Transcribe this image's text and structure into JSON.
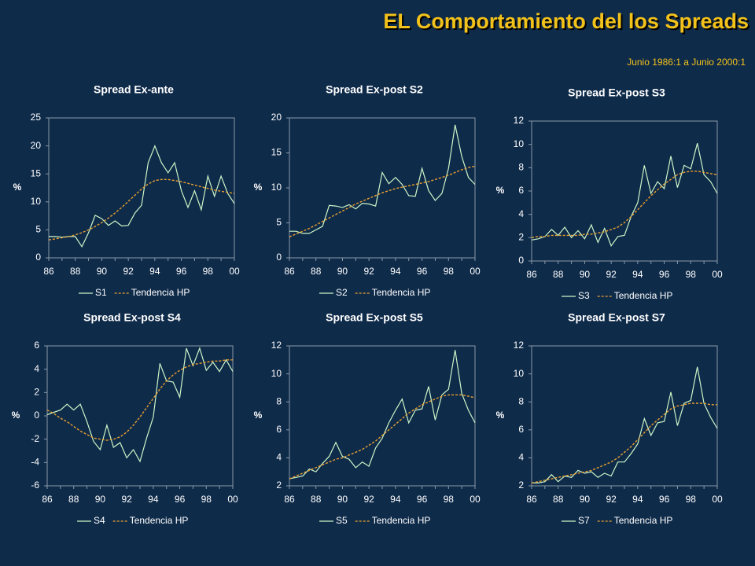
{
  "title": "EL Comportamiento del los Spreads",
  "subtitle": "Junio 1986:1 a Junio 2000:1",
  "chart_data": [
    {
      "type": "line",
      "title": "Spread Ex-ante",
      "ylabel": "%",
      "grid": false,
      "legend": "bottom",
      "categories": [
        "86",
        null,
        null,
        null,
        "88",
        null,
        null,
        null,
        "90",
        null,
        null,
        null,
        "92",
        null,
        null,
        null,
        "94",
        null,
        null,
        null,
        "96",
        null,
        null,
        null,
        "98",
        null,
        null,
        null,
        "00"
      ],
      "ylim": [
        0,
        25
      ],
      "yticks": [
        0,
        5,
        10,
        15,
        20,
        25
      ],
      "series": [
        {
          "name": "S1",
          "color": "#ccf5c8",
          "line_style": "solid",
          "values": [
            3.8,
            3.8,
            3.7,
            3.8,
            3.8,
            2.0,
            4.5,
            7.6,
            7.0,
            5.8,
            6.6,
            5.7,
            5.8,
            8.0,
            9.4,
            17.0,
            20.0,
            17.0,
            15.2,
            17.0,
            12.0,
            9.0,
            12.0,
            8.6,
            14.6,
            11.0,
            14.6,
            11.5,
            9.7
          ]
        },
        {
          "name": "Tendencia HP",
          "color": "#e8a030",
          "line_style": "dashed",
          "values": [
            3.2,
            3.4,
            3.6,
            3.8,
            4.1,
            4.5,
            5.0,
            5.6,
            6.3,
            7.1,
            8.0,
            9.0,
            10.1,
            11.2,
            12.3,
            13.2,
            13.8,
            14.0,
            14.0,
            13.8,
            13.6,
            13.3,
            13.0,
            12.7,
            12.4,
            12.1,
            11.9,
            11.7,
            11.5
          ]
        }
      ]
    },
    {
      "type": "line",
      "title": "Spread Ex-post S2",
      "ylabel": "%",
      "grid": false,
      "legend": "bottom",
      "categories": [
        "86",
        null,
        null,
        null,
        "88",
        null,
        null,
        null,
        "90",
        null,
        null,
        null,
        "92",
        null,
        null,
        null,
        "94",
        null,
        null,
        null,
        "96",
        null,
        null,
        null,
        "98",
        null,
        null,
        null,
        "00"
      ],
      "ylim": [
        0,
        20
      ],
      "yticks": [
        0,
        5,
        10,
        15,
        20
      ],
      "series": [
        {
          "name": "S2",
          "color": "#ccf5c8",
          "line_style": "solid",
          "values": [
            3.8,
            3.8,
            3.5,
            3.5,
            4.0,
            4.5,
            7.5,
            7.4,
            7.2,
            7.6,
            7.0,
            7.8,
            7.7,
            7.4,
            12.2,
            10.6,
            11.5,
            10.5,
            8.9,
            8.8,
            12.8,
            9.6,
            8.2,
            9.2,
            12.8,
            19.0,
            14.5,
            11.5,
            10.5
          ]
        },
        {
          "name": "Tendencia HP",
          "color": "#e8a030",
          "line_style": "dashed",
          "values": [
            3.0,
            3.4,
            3.8,
            4.2,
            4.7,
            5.2,
            5.7,
            6.2,
            6.7,
            7.2,
            7.7,
            8.1,
            8.5,
            8.9,
            9.3,
            9.6,
            9.9,
            10.1,
            10.3,
            10.5,
            10.7,
            10.9,
            11.2,
            11.5,
            11.8,
            12.2,
            12.6,
            12.9,
            13.1
          ]
        }
      ]
    },
    {
      "type": "line",
      "title": "Spread Ex-post S3",
      "ylabel": "%",
      "grid": false,
      "legend": "bottom",
      "categories": [
        "86",
        null,
        null,
        null,
        "88",
        null,
        null,
        null,
        "90",
        null,
        null,
        null,
        "92",
        null,
        null,
        null,
        "94",
        null,
        null,
        null,
        "96",
        null,
        null,
        null,
        "98",
        null,
        null,
        null,
        "00"
      ],
      "ylim": [
        0,
        12
      ],
      "yticks": [
        0,
        2,
        4,
        6,
        8,
        10,
        12
      ],
      "series": [
        {
          "name": "S3",
          "color": "#ccf5c8",
          "line_style": "solid",
          "values": [
            1.8,
            1.9,
            2.1,
            2.7,
            2.2,
            2.9,
            2.0,
            2.6,
            1.9,
            3.1,
            1.6,
            2.8,
            1.3,
            2.1,
            2.2,
            3.8,
            5.0,
            8.2,
            5.8,
            6.8,
            6.2,
            9.0,
            6.3,
            8.2,
            7.9,
            10.1,
            7.4,
            6.8,
            5.8
          ]
        },
        {
          "name": "Tendencia HP",
          "color": "#e8a030",
          "line_style": "dashed",
          "values": [
            2.0,
            2.1,
            2.1,
            2.2,
            2.2,
            2.2,
            2.2,
            2.2,
            2.3,
            2.3,
            2.4,
            2.5,
            2.7,
            2.9,
            3.3,
            3.8,
            4.4,
            5.0,
            5.6,
            6.1,
            6.6,
            7.0,
            7.4,
            7.6,
            7.7,
            7.7,
            7.6,
            7.5,
            7.4
          ]
        }
      ]
    },
    {
      "type": "line",
      "title": "Spread Ex-post S4",
      "ylabel": "%",
      "grid": false,
      "legend": "bottom",
      "categories": [
        "86",
        null,
        null,
        null,
        "88",
        null,
        null,
        null,
        "90",
        null,
        null,
        null,
        "92",
        null,
        null,
        null,
        "94",
        null,
        null,
        null,
        "96",
        null,
        null,
        null,
        "98",
        null,
        null,
        null,
        "00"
      ],
      "ylim": [
        -6,
        6
      ],
      "yticks": [
        -6,
        -4,
        -2,
        0,
        2,
        4,
        6
      ],
      "series": [
        {
          "name": "S4",
          "color": "#ccf5c8",
          "line_style": "solid",
          "values": [
            0.1,
            0.3,
            0.5,
            1.0,
            0.5,
            1.0,
            -0.5,
            -2.2,
            -2.9,
            -0.8,
            -2.7,
            -2.3,
            -3.6,
            -2.9,
            -3.9,
            -1.9,
            -0.1,
            4.5,
            3.0,
            2.9,
            1.6,
            5.8,
            4.3,
            5.8,
            3.9,
            4.6,
            3.8,
            4.8,
            3.8
          ]
        },
        {
          "name": "Tendencia HP",
          "color": "#e8a030",
          "line_style": "dashed",
          "values": [
            0.5,
            0.2,
            -0.2,
            -0.5,
            -0.9,
            -1.3,
            -1.6,
            -1.9,
            -2.0,
            -2.1,
            -2.0,
            -1.8,
            -1.4,
            -0.8,
            -0.1,
            0.7,
            1.5,
            2.3,
            3.0,
            3.5,
            3.9,
            4.2,
            4.4,
            4.5,
            4.6,
            4.7,
            4.7,
            4.8,
            4.8
          ]
        }
      ]
    },
    {
      "type": "line",
      "title": "Spread Ex-post S5",
      "ylabel": "%",
      "grid": false,
      "legend": "bottom",
      "categories": [
        "86",
        null,
        null,
        null,
        "88",
        null,
        null,
        null,
        "90",
        null,
        null,
        null,
        "92",
        null,
        null,
        null,
        "94",
        null,
        null,
        null,
        "96",
        null,
        null,
        null,
        "98",
        null,
        null,
        null,
        "00"
      ],
      "ylim": [
        2,
        12
      ],
      "yticks": [
        2,
        4,
        6,
        8,
        10,
        12
      ],
      "series": [
        {
          "name": "S5",
          "color": "#ccf5c8",
          "line_style": "solid",
          "values": [
            2.5,
            2.6,
            2.7,
            3.2,
            3.0,
            3.6,
            4.1,
            5.1,
            4.1,
            3.9,
            3.3,
            3.7,
            3.4,
            4.7,
            5.4,
            6.5,
            7.4,
            8.2,
            6.5,
            7.4,
            7.5,
            9.1,
            6.7,
            8.5,
            8.9,
            11.7,
            8.6,
            7.4,
            6.5
          ]
        },
        {
          "name": "Tendencia HP",
          "color": "#e8a030",
          "line_style": "dashed",
          "values": [
            2.5,
            2.7,
            2.9,
            3.1,
            3.3,
            3.5,
            3.7,
            3.9,
            4.0,
            4.2,
            4.4,
            4.6,
            4.9,
            5.2,
            5.6,
            6.0,
            6.4,
            6.8,
            7.2,
            7.5,
            7.8,
            8.0,
            8.2,
            8.4,
            8.5,
            8.5,
            8.5,
            8.4,
            8.3
          ]
        }
      ]
    },
    {
      "type": "line",
      "title": "Spread Ex-post S7",
      "ylabel": "%",
      "grid": false,
      "legend": "bottom",
      "categories": [
        "86",
        null,
        null,
        null,
        "88",
        null,
        null,
        null,
        "90",
        null,
        null,
        null,
        "92",
        null,
        null,
        null,
        "94",
        null,
        null,
        null,
        "96",
        null,
        null,
        null,
        "98",
        null,
        null,
        null,
        "00"
      ],
      "ylim": [
        2,
        12
      ],
      "yticks": [
        2,
        4,
        6,
        8,
        10,
        12
      ],
      "series": [
        {
          "name": "S7",
          "color": "#ccf5c8",
          "line_style": "solid",
          "values": [
            2.2,
            2.2,
            2.3,
            2.8,
            2.3,
            2.7,
            2.6,
            3.1,
            2.9,
            3.0,
            2.6,
            2.9,
            2.7,
            3.7,
            3.7,
            4.3,
            5.0,
            6.8,
            5.6,
            6.5,
            6.6,
            8.7,
            6.3,
            7.9,
            8.1,
            10.5,
            7.9,
            6.9,
            6.1
          ]
        },
        {
          "name": "Tendencia HP",
          "color": "#e8a030",
          "line_style": "dashed",
          "values": [
            2.2,
            2.3,
            2.4,
            2.5,
            2.6,
            2.7,
            2.8,
            2.9,
            3.0,
            3.1,
            3.3,
            3.5,
            3.7,
            4.0,
            4.4,
            4.8,
            5.3,
            5.8,
            6.3,
            6.7,
            7.1,
            7.5,
            7.7,
            7.8,
            7.9,
            7.9,
            7.9,
            7.8,
            7.8
          ]
        }
      ]
    }
  ]
}
